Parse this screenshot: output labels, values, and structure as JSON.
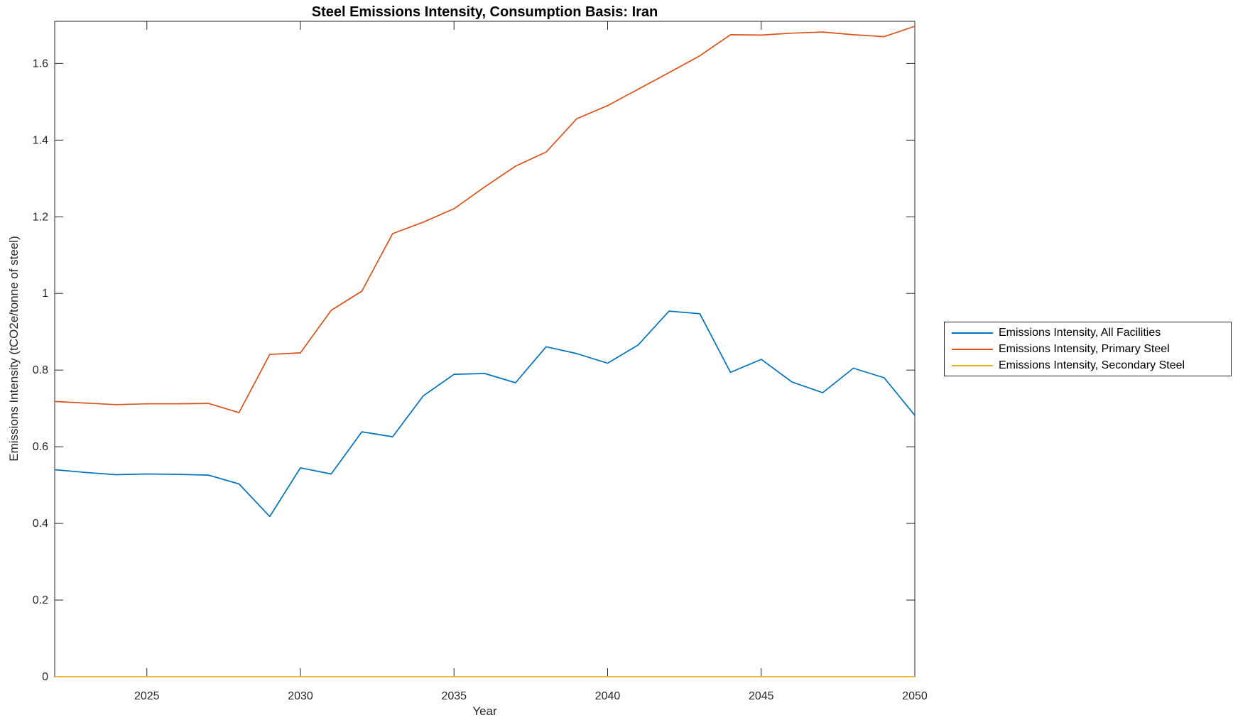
{
  "figure": {
    "background": "#ffffff"
  },
  "chart_data": {
    "type": "line",
    "title": "Steel Emissions Intensity, Consumption Basis: Iran",
    "xlabel": "Year",
    "ylabel": "Emissions Intensity (tCO2e/tonne of steel)",
    "xlim": [
      2022,
      2050
    ],
    "ylim": [
      0,
      1.71
    ],
    "xticks": [
      2025,
      2030,
      2035,
      2040,
      2045,
      2050
    ],
    "xtick_labels": [
      "2025",
      "2030",
      "2035",
      "2040",
      "2045",
      "2050"
    ],
    "yticks": [
      0,
      0.2,
      0.4,
      0.6,
      0.8,
      1,
      1.2,
      1.4,
      1.6
    ],
    "ytick_labels": [
      "0",
      "0.2",
      "0.4",
      "0.6",
      "0.8",
      "1",
      "1.2",
      "1.4",
      "1.6"
    ],
    "grid": false,
    "box": true,
    "tick_direction": "in",
    "legend_position": "outside-right",
    "axis_color": "#262626",
    "text_color": "#262626",
    "x": [
      2022,
      2023,
      2024,
      2025,
      2026,
      2027,
      2028,
      2029,
      2030,
      2031,
      2032,
      2033,
      2034,
      2035,
      2036,
      2037,
      2038,
      2039,
      2040,
      2041,
      2042,
      2043,
      2044,
      2045,
      2046,
      2047,
      2048,
      2049,
      2050
    ],
    "series": [
      {
        "name": "Emissions Intensity, All Facilities",
        "color": "#0072BD",
        "values": [
          0.54,
          0.533,
          0.527,
          0.529,
          0.528,
          0.526,
          0.503,
          0.418,
          0.545,
          0.529,
          0.639,
          0.626,
          0.733,
          0.789,
          0.791,
          0.767,
          0.861,
          0.843,
          0.818,
          0.866,
          0.954,
          0.947,
          0.794,
          0.828,
          0.769,
          0.741,
          0.805,
          0.78,
          0.682
        ]
      },
      {
        "name": "Emissions Intensity, Primary Steel",
        "color": "#D95319",
        "values": [
          0.718,
          0.714,
          0.71,
          0.712,
          0.712,
          0.713,
          0.689,
          0.841,
          0.845,
          0.956,
          1.006,
          1.156,
          1.186,
          1.221,
          1.278,
          1.332,
          1.369,
          1.456,
          1.49,
          1.533,
          1.576,
          1.62,
          1.675,
          1.674,
          1.679,
          1.682,
          1.675,
          1.67,
          1.697
        ]
      },
      {
        "name": "Emissions Intensity, Secondary Steel",
        "color": "#EDB120",
        "values": [
          0,
          0,
          0,
          0,
          0,
          0,
          0,
          0,
          0,
          0,
          0,
          0,
          0,
          0,
          0,
          0,
          0,
          0,
          0,
          0,
          0,
          0,
          0,
          0,
          0,
          0,
          0,
          0,
          0
        ]
      }
    ]
  }
}
